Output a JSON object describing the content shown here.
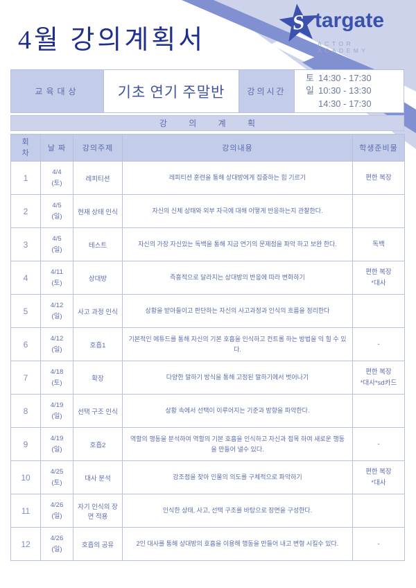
{
  "page": {
    "title": "4월 강의계획서"
  },
  "logo": {
    "star_letter": "S",
    "brand_rest": "targate",
    "subtitle": "ACTOR ACADEMY"
  },
  "colors": {
    "title_navy": "#1e2f8e",
    "logo_blue": "#3a51ae",
    "ribbon_blue": "#8090d0",
    "lavender": "#ccd3ea",
    "cell_blue": "#c3cce8",
    "border": "#b6c1e0",
    "text_blue": "#5b6cae"
  },
  "info": {
    "target_label": "교육대상",
    "class_name": "기초 연기 주말반",
    "time_label": "강의시간",
    "schedule": [
      {
        "day": "토",
        "time": "14:30  - 17:30"
      },
      {
        "day": "일",
        "time": "10:30  - 13:30"
      },
      {
        "day": "",
        "time": "14:30  - 17:30"
      }
    ]
  },
  "plan": {
    "banner": "강 의 계 획",
    "columns": {
      "no": "회차",
      "date": "날 짜",
      "topic": "강의주제",
      "content": "강의내용",
      "materials": "학생준비물"
    },
    "sessions": [
      {
        "no": "1",
        "date": "4/4",
        "day": "(토)",
        "topic": "레피티션",
        "content": "레피티션 훈련을 통해 상대방에게 집중하는 힘 기르기",
        "materials": "편한 복장"
      },
      {
        "no": "2",
        "date": "4/5",
        "day": "(일)",
        "topic": "현재 상태 인식",
        "content": "자신의 신체 상태와 외부 자극에 대해 어떻게 반응하는지 관찰한다.",
        "materials": ""
      },
      {
        "no": "3",
        "date": "4/5",
        "day": "(일)",
        "topic": "테스트",
        "content": "자신의 가장 자신있는 독백을 통해 지금 연기의 문제점을 파악 하고 보완 한다.",
        "materials": "독백"
      },
      {
        "no": "4",
        "date": "4/11",
        "day": "(토)",
        "topic": "상대방",
        "content": "즉흥적으로 달라지는 상대방의 반응에 따라 변화하기",
        "materials": "편한 복장\n*대사"
      },
      {
        "no": "5",
        "date": "4/12",
        "day": "(일)",
        "topic": "사고 과정 인식",
        "content": "상황을 받아들이고 판단하는 자신의 사고과정과 인식의 흐름을 정리한다",
        "materials": ""
      },
      {
        "no": "6",
        "date": "4/12",
        "day": "(일)",
        "topic": "호흡1",
        "content": "기본적인 에튜드를 통해 자신의 기본 호흡을 인식하고 컨트롤 하는 방법을 익 힐 수 있다.",
        "materials": "-"
      },
      {
        "no": "7",
        "date": "4/18",
        "day": "(토)",
        "topic": "확장",
        "content": "다양한 말하기 방식을 통해 고정된 말하기에서 벗어나기",
        "materials": "편한 복장\n*대사*sd카드"
      },
      {
        "no": "8",
        "date": "4/19",
        "day": "(일)",
        "topic": "선택 구조 인식",
        "content": "상황 속에서 선택이 이루어지는 기준과 방향을 파악한다.",
        "materials": ""
      },
      {
        "no": "9",
        "date": "4/19",
        "day": "(일)",
        "topic": "호흡2",
        "content": "역할의 행동을 분석하여 역할의 기본 호흡을 인식하고 자신과 접목 하여 새로운 행동을 만들어 낼수 있다.",
        "materials": "-"
      },
      {
        "no": "10",
        "date": "4/25",
        "day": "(토)",
        "topic": "대사 분석",
        "content": "강조점을 찾아 인물의 의도를 구체적으로 파악하기",
        "materials": "편한 복장\n*대사"
      },
      {
        "no": "11",
        "date": "4/26",
        "day": "(일)",
        "topic": "자기 인식의 장면 적용",
        "content": "인식한 상태, 사고, 선택 구조를 바탕으로 장면을 구성한다.",
        "materials": ""
      },
      {
        "no": "12",
        "date": "4/26",
        "day": "(일)",
        "topic": "호흡의 공유",
        "content": "2인 대사를 통해 상대방의 호흡을 이용해 행동을 만들어 내고 변형 시킬수 있다.",
        "materials": "-"
      }
    ]
  }
}
